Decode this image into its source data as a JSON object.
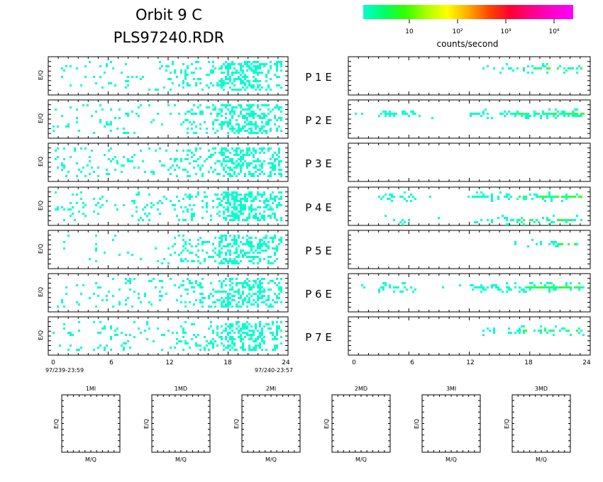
{
  "header": {
    "title_line1": "Orbit  9  C",
    "title_line2": "PLS97240.RDR"
  },
  "colorbar": {
    "colors": [
      "#00ffcc",
      "#00ff66",
      "#33ff00",
      "#aaff00",
      "#ffff00",
      "#ffaa00",
      "#ff4400",
      "#ff0033",
      "#ff0088",
      "#ff00cc",
      "#ff00ff"
    ],
    "tick_labels": [
      "10",
      "10²",
      "10³",
      "10⁴"
    ],
    "label": "counts/second"
  },
  "dot_colors": {
    "low": "#00ffcc",
    "mid": "#22ee55",
    "high": "#33ff33"
  },
  "y_axis_label": "E/Q",
  "x_axis_label_mass": "M/Q",
  "chart_data": {
    "type": "heatmap",
    "x_ticks": [
      "0",
      "6",
      "12",
      "18",
      "24"
    ],
    "xlim": [
      0,
      24
    ],
    "x_start_label": "97/239-23:59",
    "x_end_label": "97/240-23:57",
    "rows": [
      {
        "label": "P    1    E"
      },
      {
        "label": "P    2    E"
      },
      {
        "label": "P    3    E"
      },
      {
        "label": "P    4    E"
      },
      {
        "label": "P    5    E"
      },
      {
        "label": "P    6    E"
      },
      {
        "label": "P    7    E"
      }
    ]
  },
  "mass_panels": [
    {
      "label": "1MI"
    },
    {
      "label": "1MD"
    },
    {
      "label": "2MI"
    },
    {
      "label": "2MD"
    },
    {
      "label": "3MI"
    },
    {
      "label": "3MD"
    }
  ]
}
